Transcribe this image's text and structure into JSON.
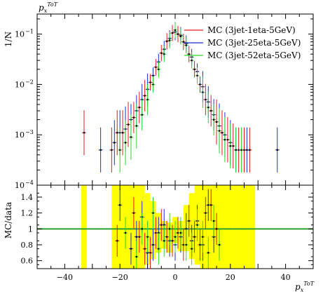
{
  "chart_data": [
    {
      "type": "scatter",
      "panel": "main",
      "title": "p_x^{ToT}",
      "ylabel": "1/N",
      "yscale": "log",
      "ylim": [
        0.0001,
        0.25
      ],
      "xlim": [
        -50,
        50
      ],
      "y_ticks": [
        {
          "value": 0.0001,
          "label": "10",
          "exp": "−4"
        },
        {
          "value": 0.001,
          "label": "10",
          "exp": "−3"
        },
        {
          "value": 0.01,
          "label": "10",
          "exp": "−2"
        },
        {
          "value": 0.1,
          "label": "10",
          "exp": "−1"
        }
      ],
      "legend_position": "top-right",
      "series": [
        {
          "name": "MC (3jet-1eta-5GeV)",
          "color": "#e41a1c",
          "x": [
            -33,
            -23,
            -21,
            -19,
            -17,
            -15,
            -13,
            -11,
            -9,
            -7,
            -5,
            -3,
            -1,
            1,
            3,
            5,
            7,
            9,
            11,
            13,
            15,
            17,
            19,
            21,
            23,
            25,
            27
          ],
          "y": [
            0.0011,
            0.0005,
            0.0011,
            0.0011,
            0.0016,
            0.0022,
            0.0035,
            0.006,
            0.011,
            0.022,
            0.042,
            0.072,
            0.105,
            0.1,
            0.07,
            0.04,
            0.02,
            0.01,
            0.005,
            0.003,
            0.0018,
            0.0011,
            0.0008,
            0.0006,
            0.0005,
            0.0005,
            0.0005
          ]
        },
        {
          "name": "MC (3jet-25eta-5GeV)",
          "color": "#1f2dd6",
          "x": [
            -27,
            -22,
            -20,
            -18,
            -16,
            -14,
            -12,
            -10,
            -8,
            -6,
            -4,
            -2,
            0,
            2,
            4,
            6,
            8,
            10,
            12,
            14,
            16,
            18,
            20,
            22,
            26,
            37
          ],
          "y": [
            0.0005,
            0.0007,
            0.0011,
            0.0013,
            0.002,
            0.003,
            0.005,
            0.008,
            0.015,
            0.028,
            0.05,
            0.082,
            0.11,
            0.095,
            0.065,
            0.035,
            0.018,
            0.009,
            0.0045,
            0.0025,
            0.0015,
            0.001,
            0.0007,
            0.0005,
            0.0005,
            0.0005
          ]
        },
        {
          "name": "MC (3jet-52eta-5GeV)",
          "color": "#2bd62b",
          "x": [
            -20,
            -18,
            -16,
            -14,
            -12,
            -10,
            -8,
            -6,
            -4,
            -2,
            0,
            2,
            4,
            6,
            8,
            10,
            12,
            14,
            16,
            18,
            20,
            22,
            24
          ],
          "y": [
            0.0005,
            0.0007,
            0.0009,
            0.0015,
            0.0025,
            0.005,
            0.01,
            0.02,
            0.04,
            0.075,
            0.12,
            0.09,
            0.06,
            0.03,
            0.015,
            0.007,
            0.0035,
            0.002,
            0.0012,
            0.0008,
            0.0006,
            0.0005,
            0.0005
          ]
        }
      ]
    },
    {
      "type": "scatter",
      "panel": "ratio",
      "xlabel": "p_x^{ToT}",
      "ylabel": "MC/data",
      "ylim": [
        0.5,
        1.55
      ],
      "xlim": [
        -50,
        50
      ],
      "x_ticks": [
        -40,
        -20,
        0,
        20,
        40
      ],
      "y_ticks": [
        0.6,
        0.8,
        1,
        1.2,
        1.4
      ],
      "reference_line": 1,
      "reference_line_color": "#2ca02c",
      "uncertainty_band_color": "#ffff00",
      "uncertainty_band": {
        "x": [
          -33,
          -22,
          -20,
          -18,
          -16,
          -14,
          -12,
          -10,
          -8,
          -6,
          -4,
          -2,
          0,
          2,
          4,
          6,
          8,
          10,
          12,
          14,
          16,
          18,
          20,
          22,
          24,
          26,
          28
        ],
        "low": [
          0.5,
          0.5,
          0.5,
          0.5,
          0.5,
          0.5,
          0.5,
          0.55,
          0.62,
          0.7,
          0.75,
          0.7,
          0.82,
          0.72,
          0.72,
          0.62,
          0.55,
          0.5,
          0.5,
          0.5,
          0.5,
          0.5,
          0.5,
          0.5,
          0.5,
          0.5,
          0.5
        ],
        "high": [
          1.55,
          1.55,
          1.55,
          1.55,
          1.55,
          1.55,
          1.55,
          1.45,
          1.35,
          1.2,
          1.1,
          1.08,
          1.15,
          1.1,
          1.3,
          1.45,
          1.55,
          1.55,
          1.55,
          1.55,
          1.55,
          1.55,
          1.55,
          1.55,
          1.55,
          1.55,
          1.55
        ]
      },
      "series": [
        {
          "name": "MC (3jet-1eta-5GeV)",
          "color": "#e41a1c",
          "x": [
            -21,
            -15,
            -13,
            -11,
            -9,
            -7,
            -5,
            -3,
            -1,
            1,
            3,
            5,
            7,
            9,
            11,
            13,
            15
          ],
          "y": [
            0.85,
            1.2,
            0.9,
            0.75,
            0.7,
            0.95,
            1.05,
            0.9,
            0.85,
            0.95,
            0.8,
            1.1,
            0.9,
            0.8,
            1.2,
            1.3,
            1.0
          ]
        },
        {
          "name": "MC (3jet-25eta-5GeV)",
          "color": "#1f2dd6",
          "x": [
            -20,
            -16,
            -14,
            -12,
            -10,
            -8,
            -6,
            -4,
            -2,
            0,
            2,
            4,
            6,
            8,
            10,
            12,
            14
          ],
          "y": [
            1.3,
            0.75,
            0.9,
            1.15,
            0.7,
            0.8,
            0.95,
            1.05,
            0.85,
            0.8,
            0.9,
            1.0,
            0.85,
            1.1,
            0.8,
            1.3,
            0.9
          ]
        },
        {
          "name": "MC (3jet-52eta-5GeV)",
          "color": "#2bd62b",
          "x": [
            -18,
            -14,
            -12,
            -10,
            -8,
            -6,
            -4,
            -2,
            0,
            2,
            4,
            6,
            8,
            10,
            12,
            14,
            16
          ],
          "y": [
            0.95,
            0.65,
            1.0,
            0.9,
            1.2,
            0.75,
            0.85,
            1.0,
            0.9,
            0.95,
            0.8,
            0.75,
            1.05,
            0.9,
            0.7,
            1.1,
            0.8
          ]
        }
      ]
    }
  ]
}
